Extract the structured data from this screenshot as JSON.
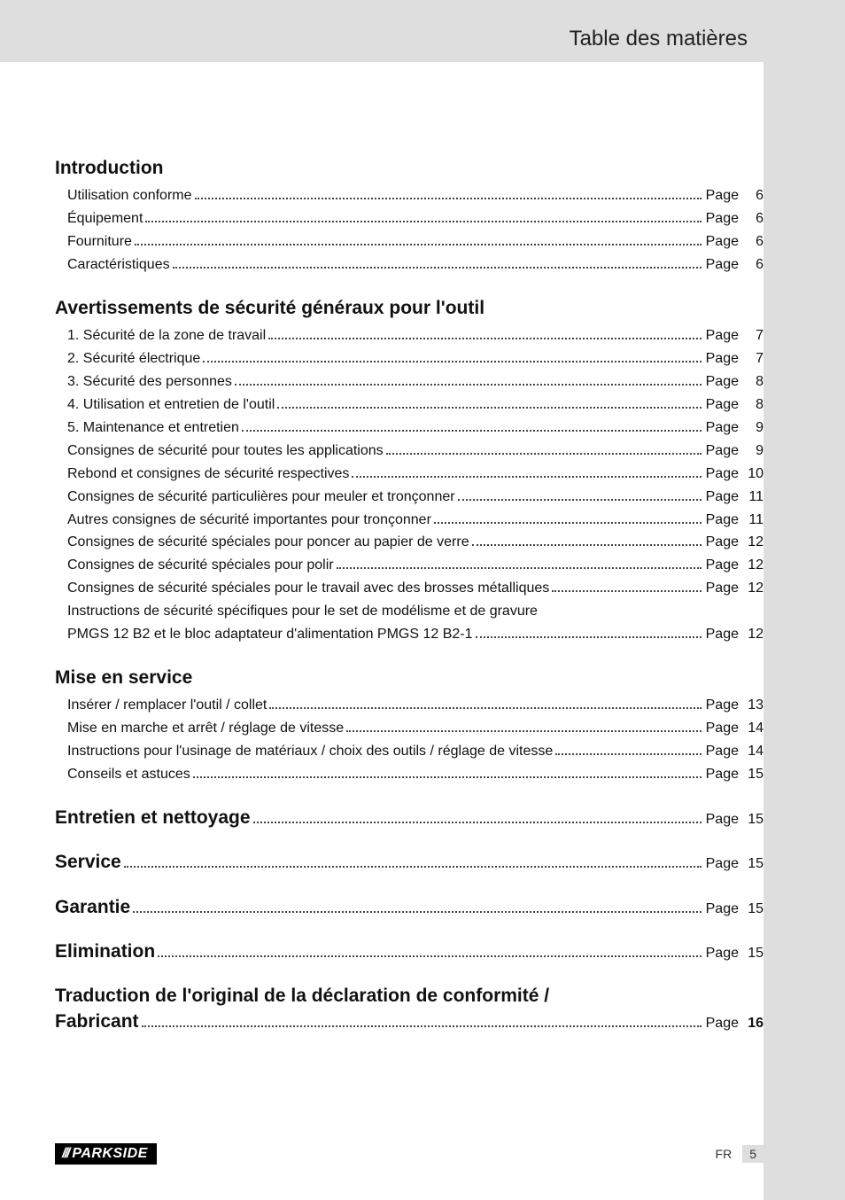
{
  "header": {
    "title": "Table des matières"
  },
  "page_label": "Page",
  "sections": [
    {
      "heading": "Introduction",
      "heading_has_page": false,
      "items": [
        {
          "text": "Utilisation conforme",
          "page": "6"
        },
        {
          "text": "Équipement",
          "page": "6"
        },
        {
          "text": "Fourniture",
          "page": "6"
        },
        {
          "text": "Caractéristiques",
          "page": "6"
        }
      ]
    },
    {
      "heading": "Avertissements de sécurité généraux pour l'outil",
      "heading_has_page": false,
      "items": [
        {
          "text": "1. Sécurité de la zone de travail",
          "page": "7"
        },
        {
          "text": "2. Sécurité électrique",
          "page": "7"
        },
        {
          "text": "3. Sécurité des personnes",
          "page": "8"
        },
        {
          "text": "4. Utilisation et entretien de l'outil",
          "page": "8"
        },
        {
          "text": "5. Maintenance et entretien",
          "page": "9"
        },
        {
          "text": "Consignes de sécurité pour toutes les applications",
          "page": "9"
        },
        {
          "text": "Rebond et consignes de sécurité respectives",
          "page": "10"
        },
        {
          "text": "Consignes de sécurité particulières pour meuler et tronçonner",
          "page": "11"
        },
        {
          "text": "Autres consignes de sécurité importantes pour tronçonner",
          "page": "11"
        },
        {
          "text": "Consignes de sécurité spéciales pour poncer au papier de verre",
          "page": "12"
        },
        {
          "text": "Consignes de sécurité spéciales pour polir",
          "page": "12"
        },
        {
          "text": "Consignes de sécurité spéciales pour le travail avec des brosses métalliques",
          "page": "12"
        },
        {
          "text_line1": "Instructions de sécurité spécifiques pour le set de modélisme et de gravure",
          "text_line2": "PMGS 12 B2 et le bloc adaptateur d'alimentation PMGS 12 B2-1",
          "page": "12",
          "multiline": true
        }
      ]
    },
    {
      "heading": "Mise en service",
      "heading_has_page": false,
      "items": [
        {
          "text": "Insérer / remplacer l'outil / collet",
          "page": "13"
        },
        {
          "text": "Mise en marche et arrêt / réglage de vitesse",
          "page": "14"
        },
        {
          "text": "Instructions pour l'usinage de matériaux / choix des outils / réglage de vitesse",
          "page": "14"
        },
        {
          "text": "Conseils et astuces",
          "page": "15"
        }
      ]
    },
    {
      "heading": "Entretien et nettoyage",
      "heading_has_page": true,
      "page": "15",
      "items": []
    },
    {
      "heading": "Service",
      "heading_has_page": true,
      "page": "15",
      "items": []
    },
    {
      "heading": "Garantie",
      "heading_has_page": true,
      "page": "15",
      "items": []
    },
    {
      "heading": "Elimination",
      "heading_has_page": true,
      "page": "15",
      "items": []
    },
    {
      "heading_line1": "Traduction de l'original de la déclaration de conformité /",
      "heading_line2": "Fabricant",
      "heading_has_page": true,
      "heading_multiline": true,
      "page": "16",
      "items": []
    }
  ],
  "footer": {
    "brand": "PARKSIDE",
    "lang": "FR",
    "pagenum": "5"
  },
  "colors": {
    "page_bg": "#ffffff",
    "margin_bg": "#dedede",
    "text": "#111111",
    "brand_bg": "#000000",
    "brand_fg": "#ffffff"
  }
}
